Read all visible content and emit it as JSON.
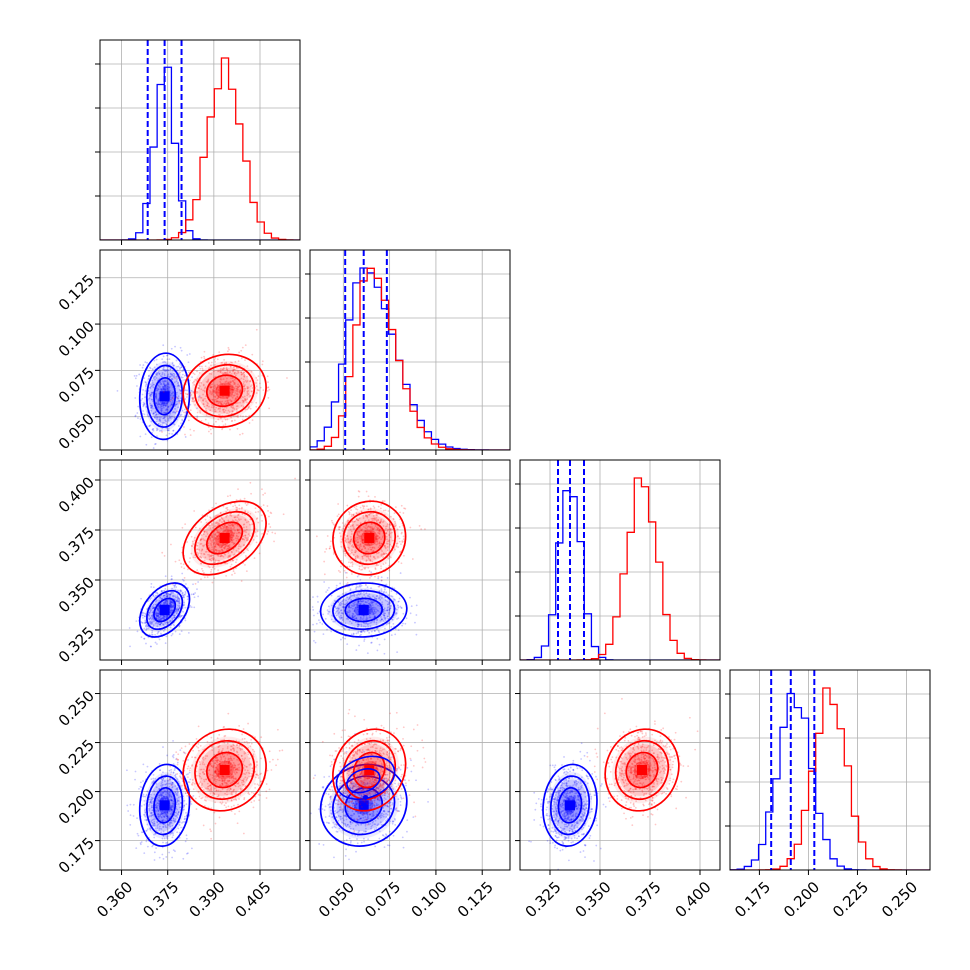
{
  "chart_data": {
    "type": "corner",
    "grid": true,
    "colors": {
      "series_a": "#0000ff",
      "series_b": "#ff0000"
    },
    "parameters": [
      {
        "index": 0,
        "range": [
          0.353,
          0.418
        ],
        "ticks": [
          0.36,
          0.375,
          0.39,
          0.405
        ],
        "tick_labels": [
          "0.360",
          "0.375",
          "0.390",
          "0.405"
        ]
      },
      {
        "index": 1,
        "range": [
          0.032,
          0.14
        ],
        "ticks": [
          0.05,
          0.075,
          0.1,
          0.125
        ],
        "tick_labels": [
          "0.050",
          "0.075",
          "0.100",
          "0.125"
        ]
      },
      {
        "index": 2,
        "range": [
          0.31,
          0.41
        ],
        "ticks": [
          0.325,
          0.35,
          0.375,
          0.4
        ],
        "tick_labels": [
          "0.325",
          "0.350",
          "0.375",
          "0.400"
        ]
      },
      {
        "index": 3,
        "range": [
          0.16,
          0.262
        ],
        "ticks": [
          0.175,
          0.2,
          0.225,
          0.25
        ],
        "tick_labels": [
          "0.175",
          "0.200",
          "0.225",
          "0.250"
        ]
      }
    ],
    "series": [
      {
        "color": "#0000ff",
        "mean": [
          0.374,
          0.061,
          0.335,
          0.193
        ],
        "sd": [
          0.0033,
          0.0095,
          0.0055,
          0.0085
        ],
        "correlations": {
          "0-1": 0.05,
          "0-2": 0.4,
          "0-3": 0.1,
          "1-2": 0.05,
          "1-3": 0.1,
          "2-3": 0.1
        },
        "quantiles": [
          [
            0.3685,
            0.374,
            0.3795
          ],
          [
            0.051,
            0.061,
            0.0735
          ],
          [
            0.329,
            0.335,
            0.342
          ],
          [
            0.181,
            0.191,
            0.203
          ]
        ]
      },
      {
        "color": "#ff0000",
        "mean": [
          0.3935,
          0.064,
          0.371,
          0.211
        ],
        "sd": [
          0.0055,
          0.008,
          0.0075,
          0.0085
        ],
        "correlations": {
          "0-1": 0.1,
          "0-2": 0.4,
          "0-3": 0.1,
          "1-2": 0.05,
          "1-3": 0.15,
          "2-3": 0.1
        }
      }
    ],
    "overlay_contour": {
      "panel": [
        3,
        1
      ],
      "color": "#0000ff",
      "center": [
        0.062,
        0.207
      ],
      "point": [
        0.062,
        0.197
      ]
    }
  }
}
